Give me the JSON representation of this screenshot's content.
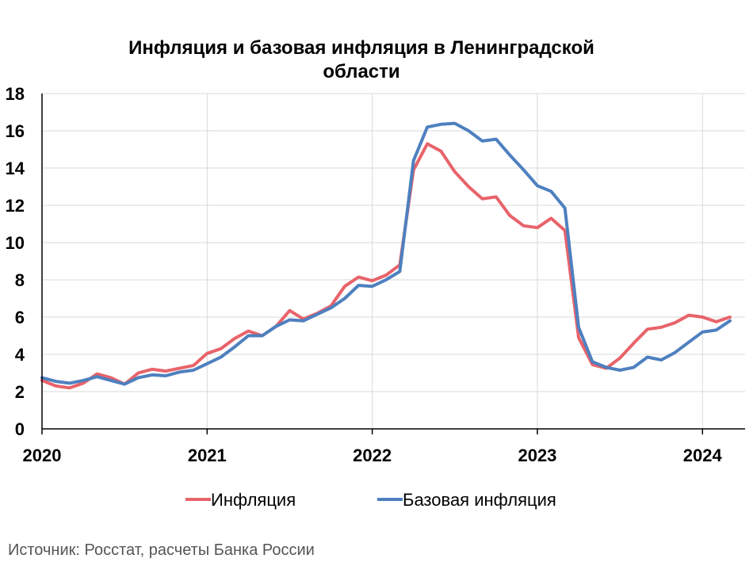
{
  "chart_data": {
    "type": "line",
    "title_lines": [
      "Инфляция и базовая инфляция в Ленинградской",
      "области"
    ],
    "x_tick_labels": [
      "2020",
      "2021",
      "2022",
      "2023",
      "2024"
    ],
    "y_tick_labels": [
      "0",
      "2",
      "4",
      "6",
      "8",
      "10",
      "12",
      "14",
      "16",
      "18"
    ],
    "xlim": [
      "2020-01",
      "2024-03"
    ],
    "ylim": [
      0,
      18
    ],
    "grid": "vertical gridlines at years, horizontal gridlines at even values",
    "legend_position": "bottom",
    "x": [
      "2020-01",
      "2020-02",
      "2020-03",
      "2020-04",
      "2020-05",
      "2020-06",
      "2020-07",
      "2020-08",
      "2020-09",
      "2020-10",
      "2020-11",
      "2020-12",
      "2021-01",
      "2021-02",
      "2021-03",
      "2021-04",
      "2021-05",
      "2021-06",
      "2021-07",
      "2021-08",
      "2021-09",
      "2021-10",
      "2021-11",
      "2021-12",
      "2022-01",
      "2022-02",
      "2022-03",
      "2022-04",
      "2022-05",
      "2022-06",
      "2022-07",
      "2022-08",
      "2022-09",
      "2022-10",
      "2022-11",
      "2022-12",
      "2023-01",
      "2023-02",
      "2023-03",
      "2023-04",
      "2023-05",
      "2023-06",
      "2023-07",
      "2023-08",
      "2023-09",
      "2023-10",
      "2023-11",
      "2023-12",
      "2024-01",
      "2024-02",
      "2024-03"
    ],
    "series": [
      {
        "name": "Инфляция",
        "color": "#E8636A",
        "values": [
          2.6,
          2.3,
          2.2,
          2.45,
          2.95,
          2.75,
          2.4,
          3.0,
          3.2,
          3.1,
          3.25,
          3.4,
          4.05,
          4.3,
          4.85,
          5.25,
          5.0,
          5.5,
          6.35,
          5.9,
          6.2,
          6.6,
          7.65,
          8.15,
          7.95,
          8.25,
          8.8,
          13.9,
          15.3,
          14.9,
          13.8,
          13.0,
          12.35,
          12.45,
          11.45,
          10.9,
          10.8,
          11.3,
          10.65,
          4.9,
          3.45,
          3.25,
          3.8,
          4.6,
          5.35,
          5.45,
          5.7,
          6.1,
          6.0,
          5.75,
          6.0
        ]
      },
      {
        "name": "Базовая инфляция",
        "color": "#4E80BF",
        "values": [
          2.75,
          2.55,
          2.45,
          2.6,
          2.8,
          2.6,
          2.4,
          2.75,
          2.9,
          2.85,
          3.05,
          3.15,
          3.5,
          3.85,
          4.4,
          5.0,
          5.0,
          5.5,
          5.85,
          5.8,
          6.15,
          6.5,
          7.0,
          7.7,
          7.65,
          8.0,
          8.45,
          14.4,
          16.2,
          16.35,
          16.4,
          16.0,
          15.45,
          15.55,
          14.7,
          13.9,
          13.05,
          12.75,
          11.85,
          5.45,
          3.6,
          3.3,
          3.15,
          3.3,
          3.85,
          3.7,
          4.1,
          4.65,
          5.2,
          5.3,
          5.8
        ]
      }
    ]
  },
  "source_text": "Источник: Росстат, расчеты Банка России"
}
